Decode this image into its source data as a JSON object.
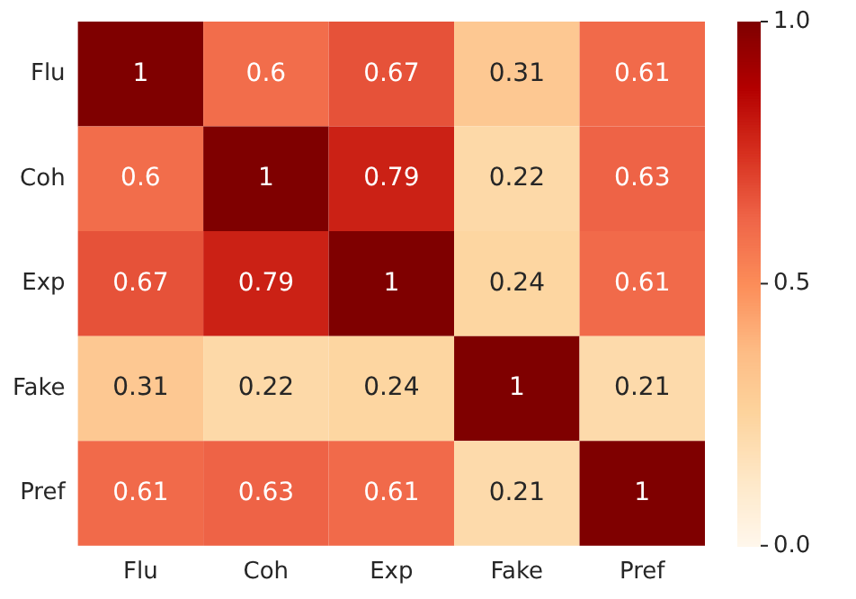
{
  "chart_data": {
    "type": "heatmap",
    "categories": [
      "Flu",
      "Coh",
      "Exp",
      "Fake",
      "Pref"
    ],
    "y_categories": [
      "Flu",
      "Coh",
      "Exp",
      "Fake",
      "Pref"
    ],
    "cells": [
      [
        1,
        0.6,
        0.67,
        0.31,
        0.61
      ],
      [
        0.6,
        1,
        0.79,
        0.22,
        0.63
      ],
      [
        0.67,
        0.79,
        1,
        0.24,
        0.61
      ],
      [
        0.31,
        0.22,
        0.24,
        1,
        0.21
      ],
      [
        0.61,
        0.63,
        0.61,
        0.21,
        1
      ]
    ],
    "clim": [
      0,
      1
    ],
    "data_labels": true,
    "cticks": [
      {
        "value": 0,
        "label": "0.0"
      },
      {
        "value": 0.5,
        "label": "0.5"
      },
      {
        "value": 1,
        "label": "1.0"
      }
    ]
  }
}
